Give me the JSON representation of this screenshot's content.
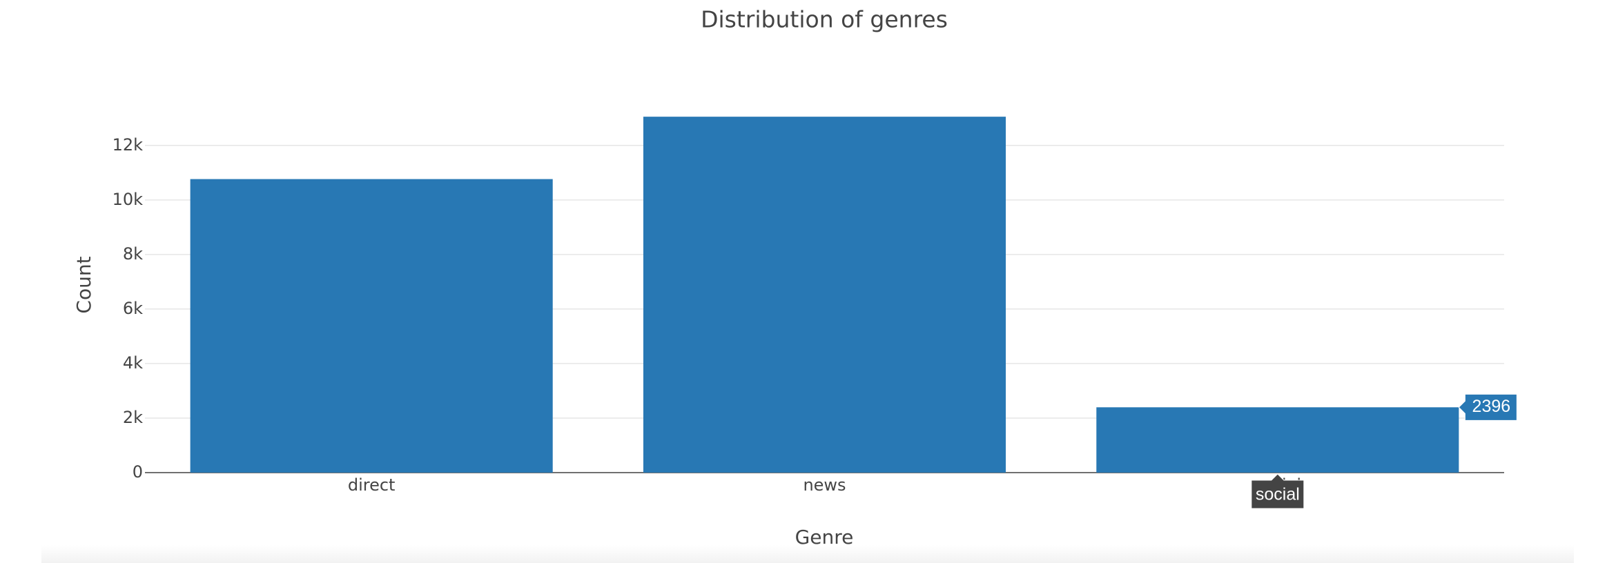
{
  "chart_data": {
    "type": "bar",
    "title": "Distribution of genres",
    "x_label": "Genre",
    "y_label": "Count",
    "categories": [
      "direct",
      "news",
      "social"
    ],
    "values": [
      10766,
      13054,
      2396
    ],
    "color": "#2878b4",
    "ylim": [
      0,
      13741
    ],
    "yticks": [
      0,
      {
        "value": 2000,
        "label": "2k"
      },
      {
        "value": 4000,
        "label": "4k"
      },
      {
        "value": 6000,
        "label": "6k"
      },
      {
        "value": 8000,
        "label": "8k"
      },
      {
        "value": 10000,
        "label": "10k"
      },
      {
        "value": 12000,
        "label": "12k"
      }
    ],
    "grid": true,
    "hover": {
      "value": "chart_data.values.2",
      "category": "chart_data.categories.2"
    }
  }
}
